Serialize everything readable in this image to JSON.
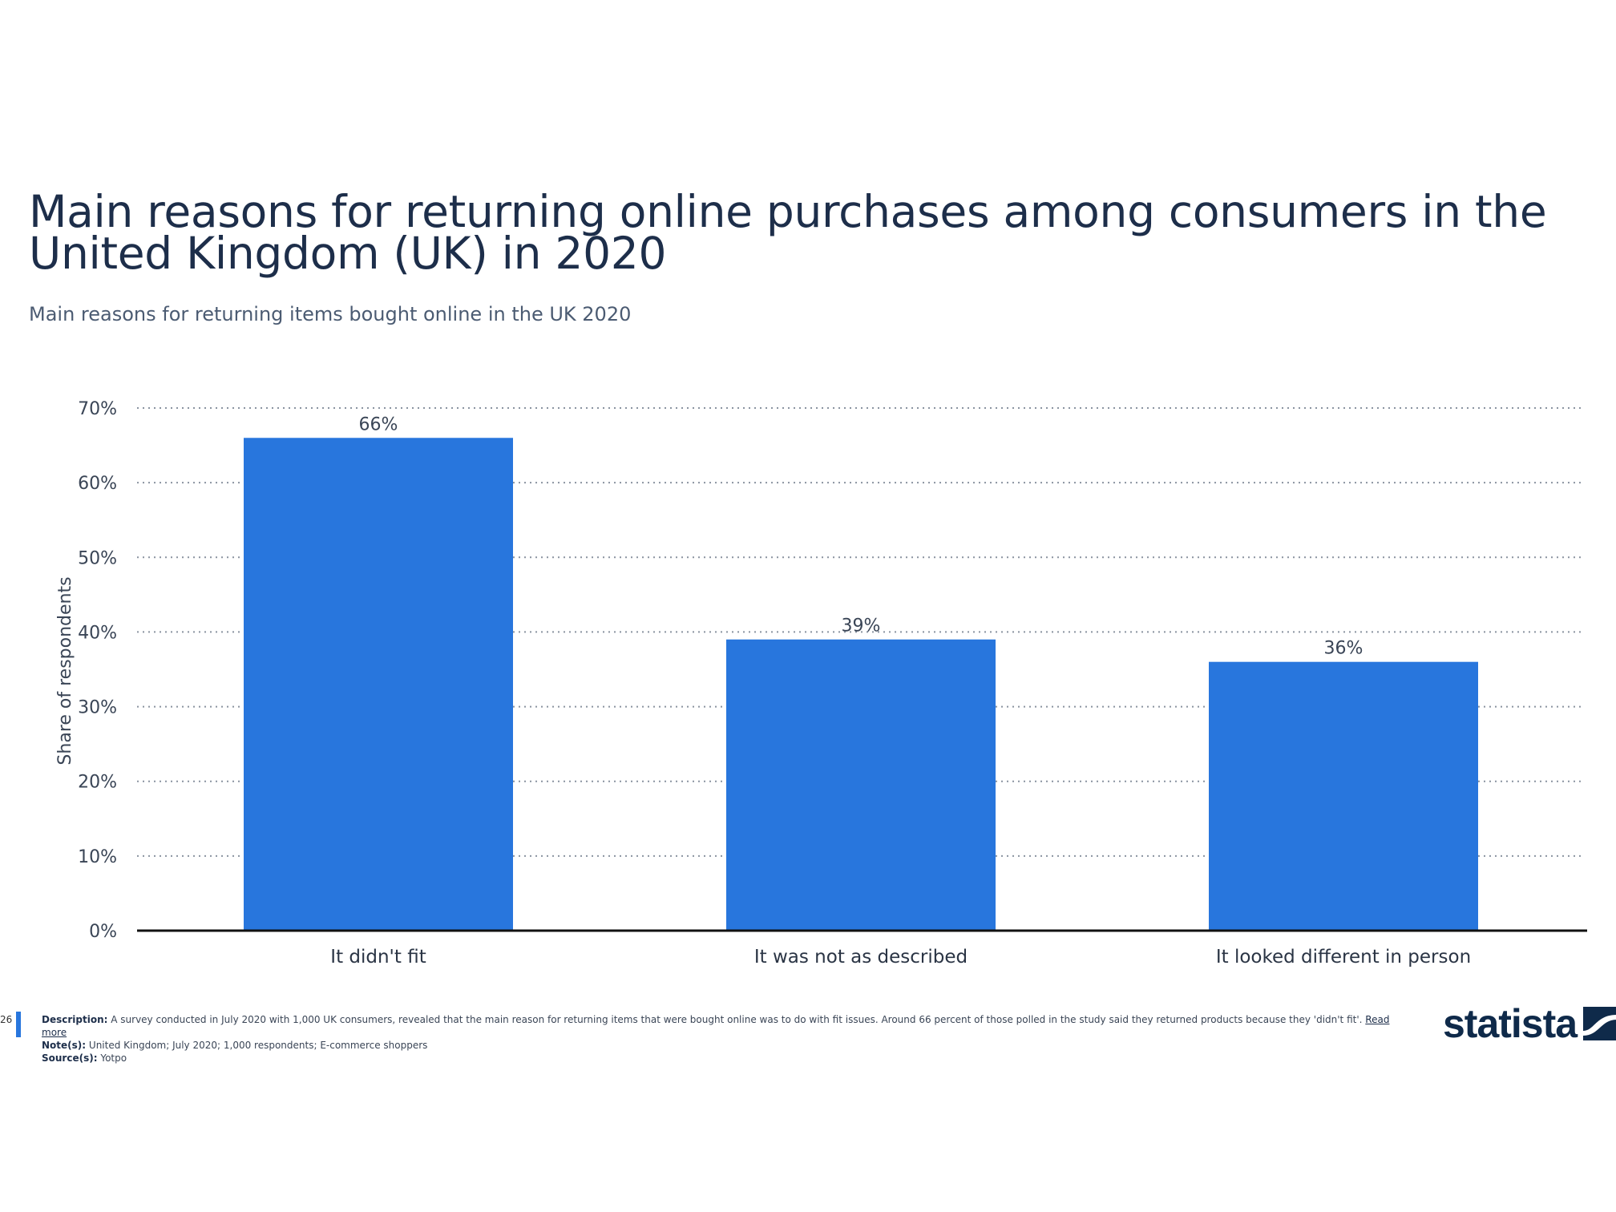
{
  "chart_data": {
    "type": "bar",
    "title": "Main reasons for returning online purchases among consumers in the United Kingdom (UK) in 2020",
    "subtitle": "Main reasons for returning items bought online in the UK 2020",
    "categories": [
      "It didn't fit",
      "It was not as described",
      "It looked different in person"
    ],
    "values": [
      66,
      39,
      36
    ],
    "data_labels": [
      "66%",
      "39%",
      "36%"
    ],
    "xlabel": "",
    "ylabel": "Share of respondents",
    "ylim": [
      0,
      70
    ],
    "yticks": [
      0,
      10,
      20,
      30,
      40,
      50,
      60,
      70
    ],
    "ytick_labels": [
      "0%",
      "10%",
      "20%",
      "30%",
      "40%",
      "50%",
      "60%",
      "70%"
    ],
    "grid": true,
    "bar_color": "#2876dd"
  },
  "footer": {
    "page_number": "26",
    "description_label": "Description:",
    "description": "A survey conducted in July 2020 with 1,000 UK consumers, revealed that the main reason for returning items that were bought online was to do with fit issues. Around 66 percent of those polled in the study said they returned products because they 'didn't fit'.",
    "read_more": "Read more",
    "notes_label": "Note(s):",
    "notes": "United Kingdom; July 2020; 1,000 respondents; E-commerce shoppers",
    "sources_label": "Source(s):",
    "sources": "Yotpo"
  },
  "logo": {
    "text": "statista",
    "icon": "statista-logo-icon"
  }
}
